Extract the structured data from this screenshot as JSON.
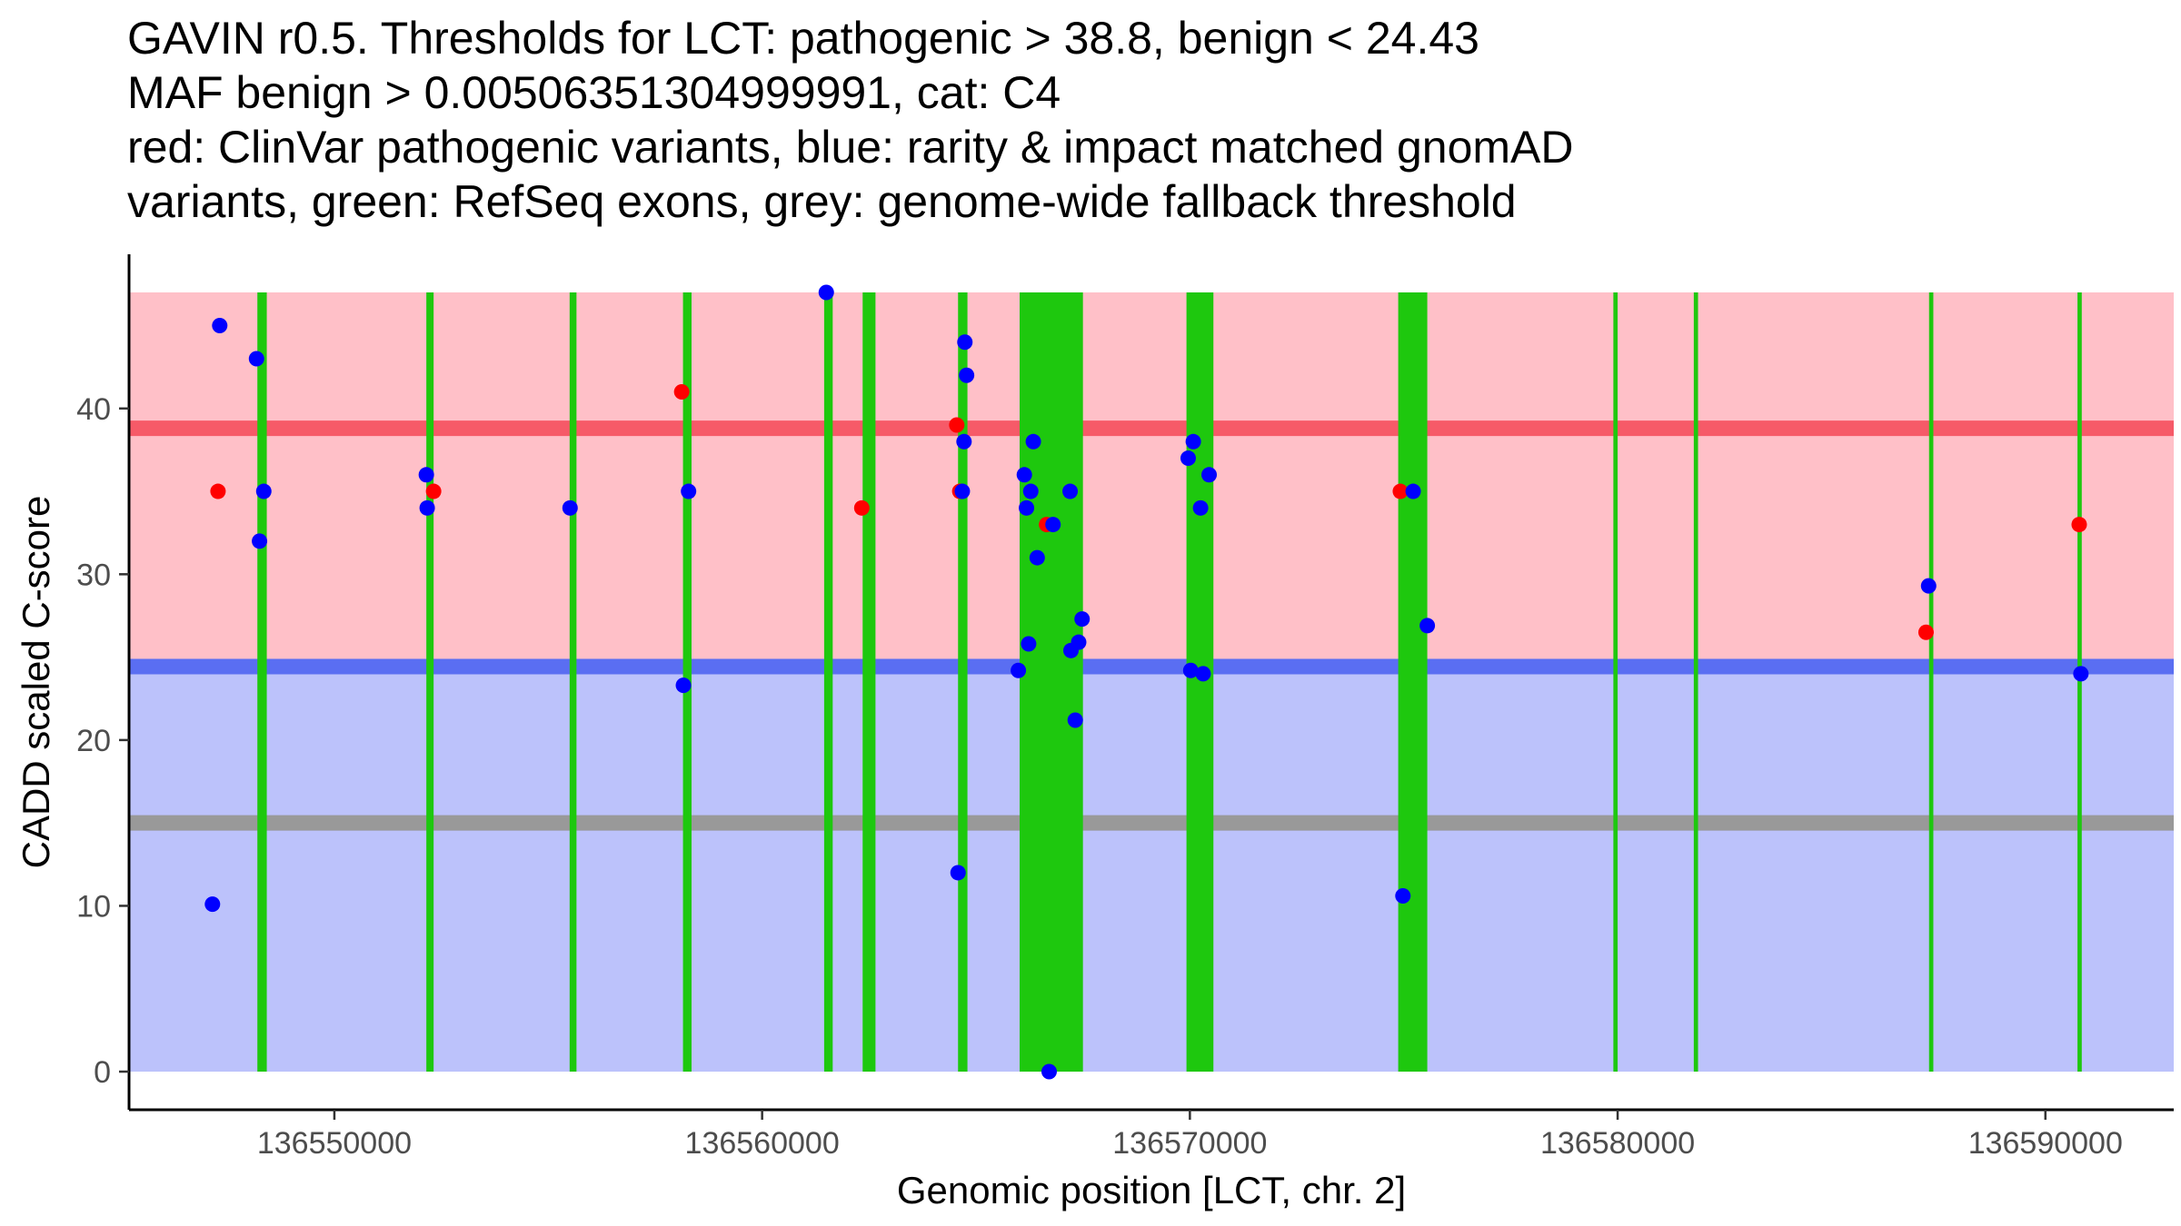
{
  "chart_data": {
    "type": "scatter",
    "title_lines": [
      "GAVIN r0.5. Thresholds for LCT: pathogenic > 38.8, benign < 24.43",
      "MAF benign > 0.00506351304999991, cat: C4",
      "red: ClinVar pathogenic variants, blue: rarity & impact matched gnomAD",
      "variants, green: RefSeq exons, grey: genome-wide fallback threshold"
    ],
    "xlabel": "Genomic position [LCT, chr. 2]",
    "ylabel": "CADD scaled C-score",
    "xlim": [
      136545200,
      136593000
    ],
    "ylim": [
      -2.3,
      49.3
    ],
    "xticks": [
      136550000,
      136560000,
      136570000,
      136580000,
      136590000
    ],
    "xtick_labels": [
      "136550000",
      "136560000",
      "136570000",
      "136580000",
      "136590000"
    ],
    "yticks": [
      0,
      10,
      20,
      30,
      40
    ],
    "ytick_labels": [
      "0",
      "10",
      "20",
      "30",
      "40"
    ],
    "regions": [
      {
        "name": "pathogenic-zone",
        "y0": 24.43,
        "y1": 47,
        "color": "#ffc0c8"
      },
      {
        "name": "benign-zone",
        "y0": 0,
        "y1": 24.43,
        "color": "#bcc2fb"
      }
    ],
    "thresholds": [
      {
        "name": "pathogenic-threshold",
        "y": 38.8,
        "color": "#f65a68"
      },
      {
        "name": "benign-threshold",
        "y": 24.43,
        "color": "#5a6ef2"
      },
      {
        "name": "fallback-threshold",
        "y": 15,
        "color": "#999999"
      }
    ],
    "exons": [
      [
        136548200,
        136548420
      ],
      [
        136552150,
        136552320
      ],
      [
        136555500,
        136555660
      ],
      [
        136558150,
        136558350
      ],
      [
        136561450,
        136561650
      ],
      [
        136562350,
        136562650
      ],
      [
        136564580,
        136564800
      ],
      [
        136566020,
        136567500
      ],
      [
        136569920,
        136570550
      ],
      [
        136574870,
        136575550
      ],
      [
        136579900,
        136580000
      ],
      [
        136581780,
        136581880
      ],
      [
        136587280,
        136587380
      ],
      [
        136590750,
        136590850
      ]
    ],
    "series": [
      {
        "name": "ClinVar pathogenic",
        "color": "#ff0000",
        "points": [
          [
            136547280,
            35
          ],
          [
            136552320,
            35
          ],
          [
            136558120,
            41
          ],
          [
            136562330,
            34
          ],
          [
            136564550,
            39
          ],
          [
            136564620,
            35
          ],
          [
            136566650,
            33
          ],
          [
            136574920,
            35
          ],
          [
            136587210,
            26.5
          ],
          [
            136590790,
            33
          ]
        ]
      },
      {
        "name": "gnomAD matched",
        "color": "#0000ff",
        "points": [
          [
            136547150,
            10.1
          ],
          [
            136547320,
            45
          ],
          [
            136548180,
            43
          ],
          [
            136548250,
            32
          ],
          [
            136548350,
            35
          ],
          [
            136552150,
            36
          ],
          [
            136552170,
            34
          ],
          [
            136555510,
            34
          ],
          [
            136558160,
            23.3
          ],
          [
            136558280,
            35
          ],
          [
            136561500,
            47
          ],
          [
            136564580,
            12
          ],
          [
            136564680,
            35
          ],
          [
            136564720,
            38
          ],
          [
            136564740,
            44
          ],
          [
            136564780,
            42
          ],
          [
            136565990,
            24.2
          ],
          [
            136566130,
            36
          ],
          [
            136566180,
            34
          ],
          [
            136566230,
            25.8
          ],
          [
            136566280,
            35
          ],
          [
            136566340,
            38
          ],
          [
            136566430,
            31
          ],
          [
            136566710,
            0
          ],
          [
            136566800,
            33
          ],
          [
            136567200,
            35
          ],
          [
            136567220,
            25.4
          ],
          [
            136567320,
            21.2
          ],
          [
            136567400,
            25.9
          ],
          [
            136567480,
            27.3
          ],
          [
            136569960,
            37
          ],
          [
            136570020,
            24.2
          ],
          [
            136570080,
            38
          ],
          [
            136570250,
            34
          ],
          [
            136570310,
            24
          ],
          [
            136570450,
            36
          ],
          [
            136574980,
            10.6
          ],
          [
            136575220,
            35
          ],
          [
            136575550,
            26.9
          ],
          [
            136587270,
            29.3
          ],
          [
            136590830,
            24
          ]
        ]
      }
    ]
  }
}
